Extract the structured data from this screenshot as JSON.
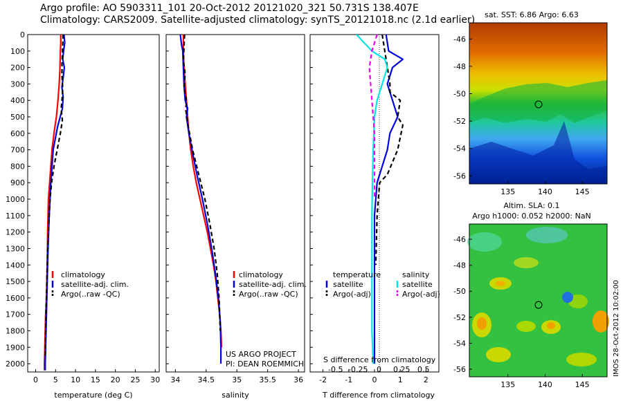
{
  "header": {
    "line1": "Argo profile: AO 5903311_101 20-Oct-2012 20121020_321 50.731S 138.407E",
    "line2": "Climatology: CARS2009. Satellite-adjusted climatology: synTS_20121018.nc (2.1d earlier)"
  },
  "colors": {
    "climatology": "#ff0000",
    "satellite": "#0000dd",
    "argo": "#000000",
    "cyan": "#00e5e5",
    "magenta": "#ee00ee"
  },
  "project_note": {
    "line1": "US ARGO PROJECT",
    "line2": "PI: DEAN ROEMMICH"
  },
  "stamp": "IMOS 28-Oct-2012 10:02:00",
  "chart_data": [
    {
      "type": "line",
      "panel": "temperature",
      "xlabel": "temperature (deg C)",
      "ylabel": "",
      "xlim": [
        -2,
        31
      ],
      "ylim": [
        2050,
        0
      ],
      "xticks": [
        0,
        5,
        10,
        15,
        20,
        25,
        30
      ],
      "yticks": [
        0,
        100,
        200,
        300,
        400,
        500,
        600,
        700,
        800,
        900,
        1000,
        1100,
        1200,
        1300,
        1400,
        1500,
        1600,
        1700,
        1800,
        1900,
        2000
      ],
      "legend": [
        "climatology",
        "satellite-adj. clim.",
        "Argo(..raw -QC)"
      ],
      "series": [
        {
          "name": "climatology",
          "color": "#ff0000",
          "dash": false,
          "x": [
            6.3,
            6.3,
            6.2,
            6.1,
            5.9,
            5.6,
            5.2,
            4.6,
            4.1,
            3.8,
            3.5,
            3.2,
            3.0,
            2.9,
            2.8,
            2.7,
            2.5,
            2.4,
            2.3,
            2.2,
            2.2
          ],
          "y": [
            0,
            50,
            100,
            200,
            300,
            400,
            500,
            600,
            700,
            800,
            900,
            1000,
            1200,
            1400,
            1500,
            1600,
            1700,
            1800,
            1900,
            2000,
            2040
          ]
        },
        {
          "name": "satellite-adj. clim.",
          "color": "#0000dd",
          "dash": false,
          "x": [
            7.1,
            7.3,
            7.0,
            6.8,
            7.2,
            6.9,
            6.6,
            6.9,
            6.7,
            5.5,
            4.4,
            3.8,
            3.4,
            3.1,
            2.9,
            2.7,
            2.5,
            2.4,
            2.4
          ],
          "y": [
            0,
            50,
            100,
            150,
            200,
            260,
            320,
            380,
            450,
            560,
            700,
            900,
            1100,
            1300,
            1500,
            1700,
            1900,
            2000,
            2040
          ]
        },
        {
          "name": "Argo(..raw -QC)",
          "color": "#000000",
          "dash": true,
          "x": [
            6.9,
            6.8,
            6.7,
            6.6,
            6.6,
            6.8,
            6.6,
            6.4,
            6.7,
            6.2,
            5.4,
            4.6,
            4.0,
            3.6,
            3.2,
            2.9,
            2.7,
            2.5,
            2.4
          ],
          "y": [
            0,
            60,
            120,
            180,
            250,
            330,
            400,
            450,
            520,
            600,
            700,
            800,
            900,
            1000,
            1200,
            1400,
            1600,
            1800,
            1960
          ]
        }
      ]
    },
    {
      "type": "line",
      "panel": "salinity",
      "xlabel": "salinity",
      "ylabel": "",
      "xlim": [
        33.85,
        36.1
      ],
      "ylim": [
        2050,
        0
      ],
      "xticks": [
        34,
        34.5,
        35,
        35.5,
        36
      ],
      "legend": [
        "climatology",
        "satellite-adj. clim.",
        "Argo(..raw -QC)"
      ],
      "series": [
        {
          "name": "climatology",
          "color": "#ff0000",
          "dash": false,
          "x": [
            34.13,
            34.13,
            34.14,
            34.16,
            34.18,
            34.2,
            34.22,
            34.25,
            34.29,
            34.34,
            34.4,
            34.46,
            34.52,
            34.57,
            34.62,
            34.66,
            34.69,
            34.72,
            34.74,
            34.75
          ],
          "y": [
            0,
            100,
            200,
            300,
            400,
            500,
            600,
            700,
            800,
            900,
            1000,
            1100,
            1200,
            1300,
            1400,
            1500,
            1600,
            1700,
            1800,
            1900
          ]
        },
        {
          "name": "satellite-adj. clim.",
          "color": "#0000dd",
          "dash": false,
          "x": [
            34.08,
            34.1,
            34.12,
            34.13,
            34.14,
            34.16,
            34.2,
            34.18,
            34.22,
            34.27,
            34.35,
            34.44,
            34.52,
            34.59,
            34.65,
            34.7,
            34.73,
            34.74,
            34.74
          ],
          "y": [
            0,
            60,
            100,
            200,
            300,
            400,
            450,
            500,
            600,
            700,
            850,
            1000,
            1150,
            1300,
            1450,
            1600,
            1750,
            1900,
            2000
          ]
        },
        {
          "name": "Argo(..raw -QC)",
          "color": "#000000",
          "dash": true,
          "x": [
            34.15,
            34.14,
            34.13,
            34.16,
            34.14,
            34.18,
            34.17,
            34.21,
            34.28,
            34.38,
            34.48,
            34.56,
            34.63,
            34.68,
            34.71,
            34.73
          ],
          "y": [
            0,
            80,
            160,
            240,
            320,
            400,
            460,
            560,
            700,
            850,
            1000,
            1150,
            1300,
            1450,
            1600,
            1800
          ]
        }
      ]
    },
    {
      "type": "line",
      "panel": "difference",
      "xlabel": "T difference from climatology",
      "ylabel": "",
      "xlim": [
        -2.5,
        2.5
      ],
      "ylim": [
        2050,
        0
      ],
      "xticks": [
        -2,
        -1,
        0,
        1,
        2
      ],
      "s_axis_label": "S difference from climatology",
      "s_ticks": [
        "-0.5",
        "-0.25",
        "0",
        "0.25",
        "0.5"
      ],
      "legend_headers": [
        "temperature",
        "salinity"
      ],
      "legend": [
        "satellite",
        "Argo(-adj)",
        "satellite",
        "Argo(-adj)"
      ],
      "series": [
        {
          "name": "temperature satellite",
          "color": "#0000dd",
          "dash": false,
          "x": [
            0.45,
            0.55,
            1.1,
            0.7,
            0.6,
            0.5,
            0.7,
            0.9,
            0.6,
            0.5,
            0.3,
            0.1,
            0.0,
            0.0,
            0.0,
            0.0
          ],
          "y": [
            0,
            100,
            150,
            200,
            250,
            300,
            400,
            500,
            600,
            700,
            800,
            900,
            1100,
            1400,
            1700,
            2000
          ]
        },
        {
          "name": "temperature Argo(-adj)",
          "color": "#000000",
          "dash": true,
          "x": [
            0.3,
            0.4,
            0.5,
            0.6,
            0.6,
            1.0,
            0.9,
            1.1,
            0.9,
            0.5,
            0.2,
            0.1,
            0.05
          ],
          "y": [
            0,
            100,
            200,
            300,
            350,
            400,
            500,
            550,
            700,
            850,
            900,
            1100,
            1400
          ]
        },
        {
          "name": "salinity satellite",
          "color": "#00e5e5",
          "dash": false,
          "x": [
            -0.7,
            -0.1,
            0.4,
            0.5,
            0.3,
            0.1,
            0.0,
            -0.05,
            -0.08,
            -0.1,
            -0.1,
            -0.1,
            -0.05
          ],
          "y": [
            0,
            100,
            150,
            200,
            300,
            400,
            500,
            700,
            900,
            1100,
            1500,
            1800,
            2000
          ]
        },
        {
          "name": "salinity Argo(-adj)",
          "color": "#ee00ee",
          "dash": true,
          "x": [
            0.1,
            -0.1,
            -0.2,
            -0.15,
            -0.1,
            -0.05,
            0.0,
            0.0,
            0.0
          ],
          "y": [
            0,
            100,
            200,
            300,
            400,
            500,
            600,
            800,
            1000
          ]
        }
      ]
    },
    {
      "type": "heatmap",
      "panel": "sst_map",
      "title": "sat. SST: 6.86 Argo: 6.63",
      "xticks": [
        "135",
        "140",
        "145"
      ],
      "yticks": [
        "-46",
        "-48",
        "-50",
        "-52",
        "-54",
        "-56"
      ]
    },
    {
      "type": "heatmap",
      "panel": "sla_map",
      "title_line1": "Altim. SLA: 0.1",
      "title_line2": "Argo h1000: 0.052 h2000: NaN",
      "xticks": [
        "135",
        "140",
        "145"
      ],
      "yticks": [
        "-46",
        "-48",
        "-50",
        "-52",
        "-54",
        "-56"
      ]
    }
  ]
}
